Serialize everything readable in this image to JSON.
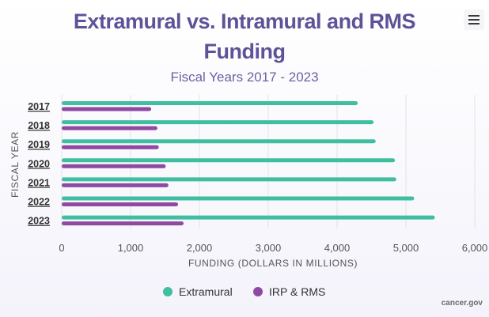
{
  "chart_data": {
    "type": "bar",
    "orientation": "horizontal",
    "title": "Extramural vs. Intramural and RMS Funding",
    "subtitle": "Fiscal Years 2017 - 2023",
    "xlabel": "FUNDING (DOLLARS IN MILLIONS)",
    "ylabel": "FISCAL YEAR",
    "categories": [
      "2017",
      "2018",
      "2019",
      "2020",
      "2021",
      "2022",
      "2023"
    ],
    "series": [
      {
        "name": "Extramural",
        "color": "#3fbf9f",
        "values": [
          4300,
          4530,
          4560,
          4840,
          4860,
          5120,
          5420
        ]
      },
      {
        "name": "IRP & RMS",
        "color": "#8e4aa3",
        "values": [
          1300,
          1390,
          1410,
          1510,
          1550,
          1690,
          1770
        ]
      }
    ],
    "xlim": [
      0,
      6000
    ],
    "xticks": [
      "0",
      "1,000",
      "2,000",
      "3,000",
      "4,000",
      "5,000",
      "6,000"
    ],
    "xtick_values": [
      0,
      1000,
      2000,
      3000,
      4000,
      5000,
      6000
    ],
    "grid": "vertical",
    "legend": "bottom-center"
  },
  "credit": "cancer.gov",
  "menu_icon": "hamburger-menu-icon"
}
